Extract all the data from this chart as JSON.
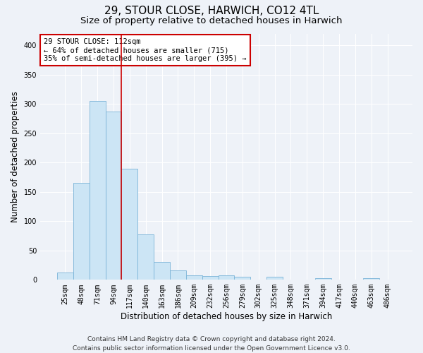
{
  "title": "29, STOUR CLOSE, HARWICH, CO12 4TL",
  "subtitle": "Size of property relative to detached houses in Harwich",
  "xlabel": "Distribution of detached houses by size in Harwich",
  "ylabel": "Number of detached properties",
  "categories": [
    "25sqm",
    "48sqm",
    "71sqm",
    "94sqm",
    "117sqm",
    "140sqm",
    "163sqm",
    "186sqm",
    "209sqm",
    "232sqm",
    "256sqm",
    "279sqm",
    "302sqm",
    "325sqm",
    "348sqm",
    "371sqm",
    "394sqm",
    "417sqm",
    "440sqm",
    "463sqm",
    "486sqm"
  ],
  "values": [
    13,
    165,
    305,
    287,
    190,
    77,
    30,
    16,
    8,
    7,
    8,
    5,
    0,
    5,
    0,
    0,
    3,
    0,
    0,
    3,
    0
  ],
  "bar_color": "#cce5f5",
  "bar_edge_color": "#7ab4d8",
  "vline_x": 3.5,
  "vline_color": "#cc0000",
  "annotation_text": "29 STOUR CLOSE: 112sqm\n← 64% of detached houses are smaller (715)\n35% of semi-detached houses are larger (395) →",
  "annotation_box_color": "#ffffff",
  "annotation_box_edge": "#cc0000",
  "ylim": [
    0,
    420
  ],
  "yticks": [
    0,
    50,
    100,
    150,
    200,
    250,
    300,
    350,
    400
  ],
  "footer_line1": "Contains HM Land Registry data © Crown copyright and database right 2024.",
  "footer_line2": "Contains public sector information licensed under the Open Government Licence v3.0.",
  "bg_color": "#eef2f8",
  "grid_color": "#ffffff",
  "title_fontsize": 11,
  "subtitle_fontsize": 9.5,
  "tick_fontsize": 7,
  "label_fontsize": 8.5,
  "footer_fontsize": 6.5
}
